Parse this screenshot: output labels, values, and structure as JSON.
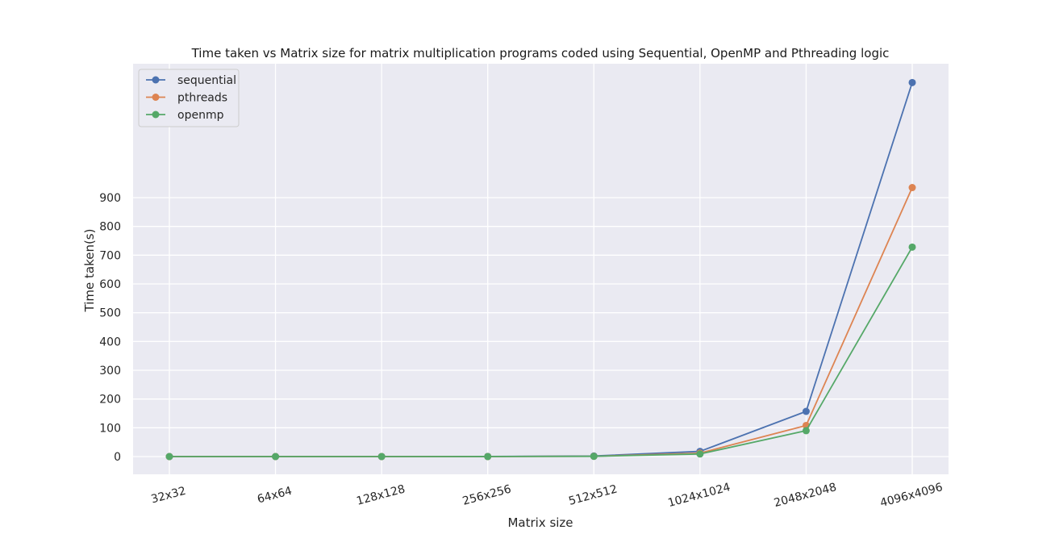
{
  "chart_data": {
    "type": "line",
    "title": "Time taken vs Matrix size for matrix multiplication programs coded using Sequential, OpenMP and Pthreading logic",
    "xlabel": "Matrix size",
    "ylabel": "Time taken(s)",
    "categories": [
      "32x32",
      "64x64",
      "128x128",
      "256x256",
      "512x512",
      "1024x1024",
      "2048x2048",
      "4096x4096"
    ],
    "yticks": [
      0,
      100,
      200,
      300,
      400,
      500,
      600,
      700,
      800,
      900
    ],
    "ylim": [
      -60,
      1360
    ],
    "grid": true,
    "legend_position": "top-left",
    "series": [
      {
        "name": "sequential",
        "color": "#4c72b0",
        "values": [
          0.001,
          0.002,
          0.02,
          0.2,
          2,
          18,
          157,
          1300
        ]
      },
      {
        "name": "pthreads",
        "color": "#dd8452",
        "values": [
          0.001,
          0.002,
          0.01,
          0.1,
          1,
          12,
          108,
          935
        ]
      },
      {
        "name": "openmp",
        "color": "#55a868",
        "values": [
          0.001,
          0.002,
          0.01,
          0.1,
          0.8,
          9,
          90,
          728
        ]
      }
    ]
  }
}
